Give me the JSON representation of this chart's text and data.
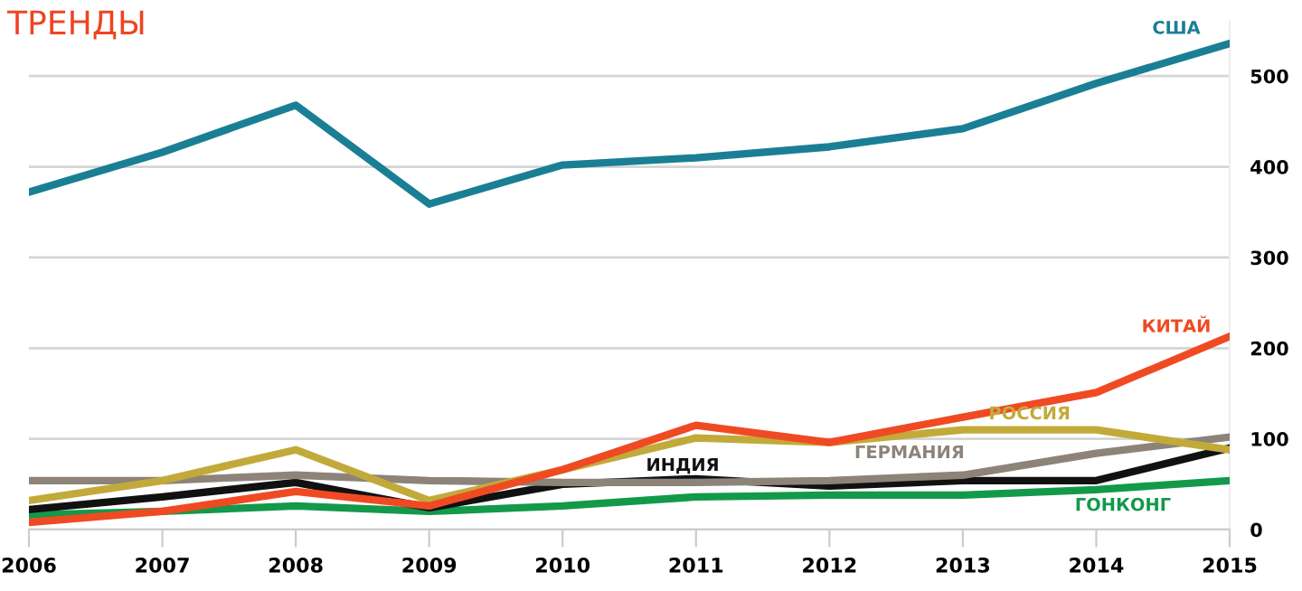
{
  "chart_data": {
    "type": "line",
    "title": "ТРЕНДЫ",
    "x": [
      2006,
      2007,
      2008,
      2009,
      2010,
      2011,
      2012,
      2013,
      2014,
      2015
    ],
    "series": [
      {
        "name": "США",
        "color": "#1a7f95",
        "values": [
          372,
          416,
          468,
          359,
          402,
          410,
          422,
          442,
          492,
          536
        ]
      },
      {
        "name": "КИТАЙ",
        "color": "#f04a23",
        "values": [
          8,
          20,
          42,
          26,
          66,
          115,
          96,
          124,
          151,
          213
        ]
      },
      {
        "name": "РОССИЯ",
        "color": "#c2aa3a",
        "values": [
          32,
          54,
          88,
          32,
          66,
          101,
          96,
          110,
          110,
          88
        ]
      },
      {
        "name": "ГЕРМАНИЯ",
        "color": "#8d8379",
        "values": [
          54,
          54,
          60,
          54,
          52,
          52,
          54,
          60,
          84,
          102
        ]
      },
      {
        "name": "ИНДИЯ",
        "color": "#111111",
        "values": [
          22,
          36,
          52,
          24,
          50,
          56,
          48,
          54,
          54,
          90
        ]
      },
      {
        "name": "ГОНКОНГ",
        "color": "#13994a",
        "values": [
          16,
          20,
          26,
          20,
          26,
          36,
          38,
          38,
          44,
          54
        ]
      }
    ],
    "xlim": [
      2006,
      2015
    ],
    "xticks": [
      2006,
      2007,
      2008,
      2009,
      2010,
      2011,
      2012,
      2013,
      2014,
      2015
    ],
    "ylim": [
      0,
      560
    ],
    "yticks": [
      0,
      100,
      200,
      300,
      400,
      500
    ],
    "grid": "y",
    "legend": false,
    "marker": "none",
    "line_style": "solid"
  }
}
